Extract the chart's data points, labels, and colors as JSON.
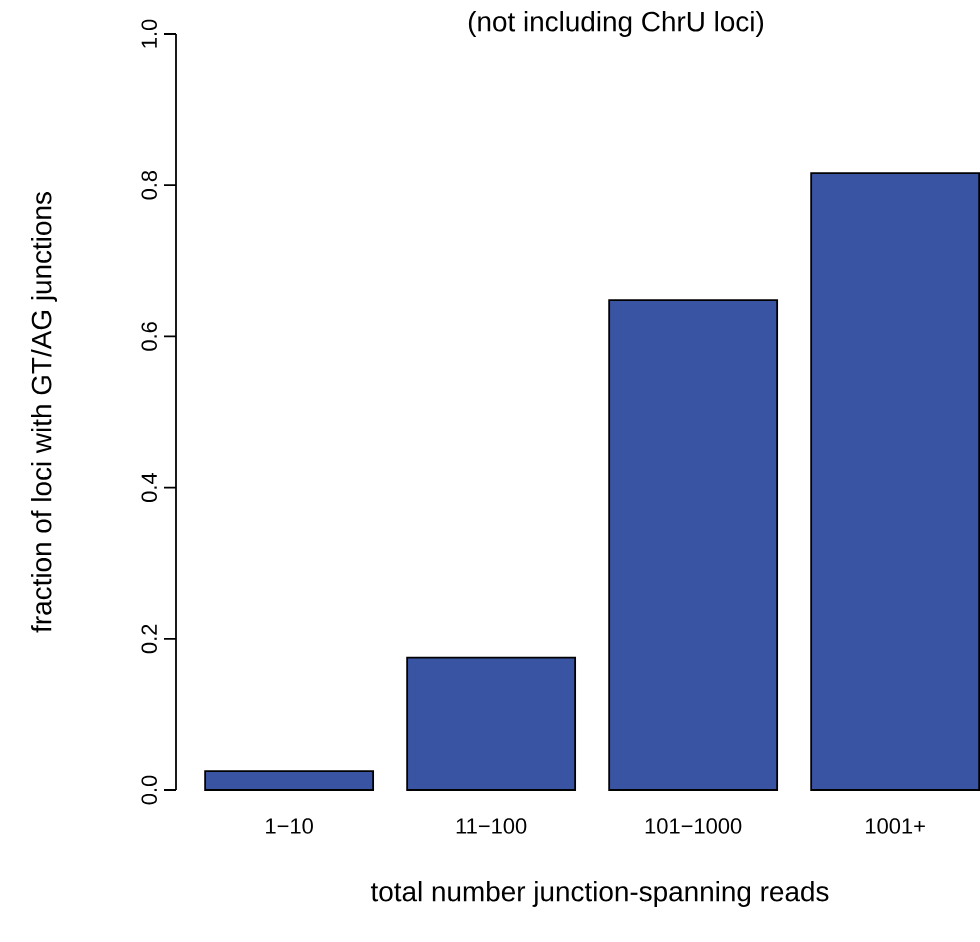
{
  "chart_data": {
    "type": "bar",
    "title": "(not including ChrU loci)",
    "xlabel": "total number junction-spanning reads",
    "ylabel": "fraction of loci with GT/AG junctions",
    "categories": [
      "1−10",
      "11−100",
      "101−1000",
      "1001+"
    ],
    "values": [
      0.025,
      0.175,
      0.648,
      0.816
    ],
    "color": "#3a54a4",
    "ylim": [
      0,
      1
    ],
    "yticks": [
      {
        "value": 0,
        "label": "0.0"
      },
      {
        "value": 0.2,
        "label": "0.2"
      },
      {
        "value": 0.4,
        "label": "0.4"
      },
      {
        "value": 0.6,
        "label": "0.6"
      },
      {
        "value": 0.8,
        "label": "0.8"
      },
      {
        "value": 1,
        "label": "1.0"
      }
    ],
    "grid": false
  }
}
